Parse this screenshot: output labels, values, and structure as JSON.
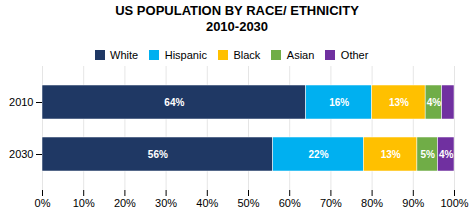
{
  "chart_data": {
    "type": "bar",
    "orientation": "horizontal",
    "stacked": true,
    "title": "US POPULATION BY RACE/ ETHNICITY",
    "subtitle": "2010-2030",
    "categories": [
      "2010",
      "2030"
    ],
    "series": [
      {
        "name": "White",
        "color": "#1f3864",
        "values": [
          64,
          56
        ],
        "value_labels": [
          "64%",
          "56%"
        ]
      },
      {
        "name": "Hispanic",
        "color": "#00b0f0",
        "values": [
          16,
          22
        ],
        "value_labels": [
          "16%",
          "22%"
        ]
      },
      {
        "name": "Black",
        "color": "#ffc000",
        "values": [
          13,
          13
        ],
        "value_labels": [
          "13%",
          "13%"
        ]
      },
      {
        "name": "Asian",
        "color": "#70ad47",
        "values": [
          4,
          5
        ],
        "value_labels": [
          "4%",
          "5%"
        ]
      },
      {
        "name": "Other",
        "color": "#7030a0",
        "values": [
          3,
          4
        ],
        "value_labels": [
          null,
          "4%"
        ]
      }
    ],
    "xlim": [
      0,
      100
    ],
    "xticks": [
      {
        "value": 0,
        "label": "0%"
      },
      {
        "value": 10,
        "label": "10%"
      },
      {
        "value": 20,
        "label": "20%"
      },
      {
        "value": 30,
        "label": "30%"
      },
      {
        "value": 40,
        "label": "40%"
      },
      {
        "value": 50,
        "label": "50%"
      },
      {
        "value": 60,
        "label": "60%"
      },
      {
        "value": 70,
        "label": "70%"
      },
      {
        "value": 80,
        "label": "80%"
      },
      {
        "value": 90,
        "label": "90%"
      },
      {
        "value": 100,
        "label": "100%"
      }
    ],
    "grid": true,
    "data_labels": true,
    "legend": "top"
  }
}
